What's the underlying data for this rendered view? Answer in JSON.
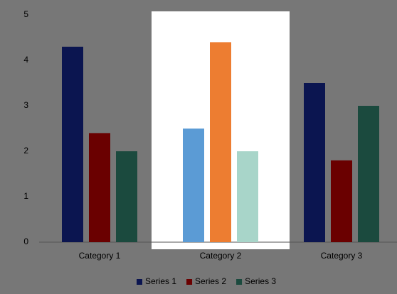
{
  "chart_data": {
    "type": "bar",
    "categories": [
      "Category 1",
      "Category 2",
      "Category 3"
    ],
    "series": [
      {
        "name": "Series 1",
        "color": "#0b1550",
        "point_colors": [
          "#0b1550",
          "#5b9bd5",
          "#0b1550"
        ],
        "values": [
          4.3,
          2.5,
          3.5
        ]
      },
      {
        "name": "Series 2",
        "color": "#6a0000",
        "point_colors": [
          "#6a0000",
          "#ed7d31",
          "#6a0000"
        ],
        "values": [
          2.4,
          4.4,
          1.8
        ]
      },
      {
        "name": "Series 3",
        "color": "#1b4a3e",
        "point_colors": [
          "#1b4a3e",
          "#a8d5c9",
          "#1b4a3e"
        ],
        "values": [
          2,
          2,
          3
        ]
      }
    ],
    "highlight_index": 1,
    "highlight_color": "#ffffff",
    "ylim": [
      0,
      5
    ],
    "yticks": [
      0,
      1,
      2,
      3,
      4,
      5
    ],
    "legend": "bottom"
  }
}
